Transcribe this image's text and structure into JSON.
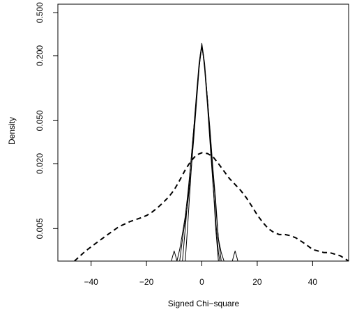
{
  "chart_data": {
    "type": "line",
    "title": "",
    "xlabel": "Signed Chi−square",
    "ylabel": "Density",
    "x_axis": {
      "ticks": [
        -40,
        -20,
        0,
        20,
        40
      ],
      "tick_labels": [
        "−40",
        "−20",
        "0",
        "20",
        "40"
      ],
      "range": [
        -52,
        53
      ]
    },
    "y_axis": {
      "scale": "log",
      "ticks": [
        0.005,
        0.02,
        0.05,
        0.2,
        0.5
      ],
      "tick_labels": [
        "0.005",
        "0.020",
        "0.050",
        "0.200",
        "0.500"
      ],
      "range": [
        0.0025,
        0.6
      ]
    },
    "grid": false,
    "legend": "none",
    "series": [
      {
        "style": "dashed",
        "color": "#000000",
        "x": [
          -46,
          -42,
          -38,
          -34,
          -30,
          -26,
          -22,
          -20,
          -18,
          -16,
          -14,
          -12,
          -10,
          -8,
          -6,
          -4,
          -2,
          0,
          2,
          4,
          6,
          8,
          10,
          12,
          14,
          16,
          18,
          20,
          22,
          24,
          26,
          28,
          30,
          32,
          34,
          36,
          38,
          40,
          42,
          44,
          46,
          48,
          50,
          52,
          53
        ],
        "y": [
          0.0025,
          0.0031,
          0.0037,
          0.0044,
          0.0052,
          0.0058,
          0.0063,
          0.0066,
          0.0071,
          0.0078,
          0.0087,
          0.0098,
          0.0114,
          0.014,
          0.0175,
          0.021,
          0.024,
          0.0252,
          0.0248,
          0.0232,
          0.02,
          0.017,
          0.0145,
          0.0128,
          0.0113,
          0.0097,
          0.0081,
          0.0067,
          0.0057,
          0.005,
          0.0046,
          0.0044,
          0.0044,
          0.0043,
          0.0041,
          0.0038,
          0.0035,
          0.0032,
          0.0031,
          0.003,
          0.003,
          0.0029,
          0.0028,
          0.0026,
          0.0025
        ]
      },
      {
        "style": "solid",
        "color": "#000000",
        "x": [
          -9,
          -8,
          -7,
          -6,
          -5,
          -4,
          -3,
          -2,
          -1,
          -0.5,
          0,
          0.5,
          1,
          2,
          3,
          4,
          5,
          6,
          7
        ],
        "y": [
          0.0025,
          0.0032,
          0.0045,
          0.0065,
          0.011,
          0.02,
          0.04,
          0.08,
          0.16,
          0.21,
          0.235,
          0.21,
          0.16,
          0.08,
          0.04,
          0.018,
          0.009,
          0.004,
          0.0025
        ]
      },
      {
        "style": "solid",
        "color": "#000000",
        "x": [
          -8,
          -7,
          -6,
          -5,
          -4,
          -3,
          -2,
          -1,
          -0.5,
          0,
          0.5,
          1,
          2,
          3,
          4,
          5,
          6,
          6.5
        ],
        "y": [
          0.0025,
          0.004,
          0.006,
          0.009,
          0.016,
          0.032,
          0.07,
          0.15,
          0.2,
          0.25,
          0.2,
          0.15,
          0.07,
          0.03,
          0.013,
          0.006,
          0.003,
          0.0025
        ]
      },
      {
        "style": "solid",
        "color": "#000000",
        "x": [
          -7,
          -6,
          -5,
          -4,
          -3,
          -2,
          -1,
          0,
          1,
          2,
          3,
          4,
          5,
          6
        ],
        "y": [
          0.0025,
          0.005,
          0.01,
          0.02,
          0.04,
          0.085,
          0.17,
          0.26,
          0.17,
          0.08,
          0.035,
          0.014,
          0.005,
          0.0025
        ]
      },
      {
        "style": "solid",
        "color": "#000000",
        "x": [
          -6,
          -5,
          -4,
          -3,
          -2,
          -1,
          0,
          1,
          2,
          3,
          4,
          5,
          6,
          7,
          8
        ],
        "y": [
          0.0025,
          0.006,
          0.015,
          0.035,
          0.075,
          0.155,
          0.245,
          0.16,
          0.08,
          0.038,
          0.017,
          0.008,
          0.004,
          0.003,
          0.0025
        ]
      },
      {
        "style": "solid",
        "color": "#000000",
        "x": [
          -11,
          -10.5,
          -10,
          -9.5,
          -9
        ],
        "y": [
          0.0025,
          0.0028,
          0.0031,
          0.0028,
          0.0025
        ]
      },
      {
        "style": "solid",
        "color": "#000000",
        "x": [
          11,
          11.5,
          12,
          12.5,
          13
        ],
        "y": [
          0.0025,
          0.0028,
          0.0031,
          0.0028,
          0.0025
        ]
      }
    ]
  }
}
